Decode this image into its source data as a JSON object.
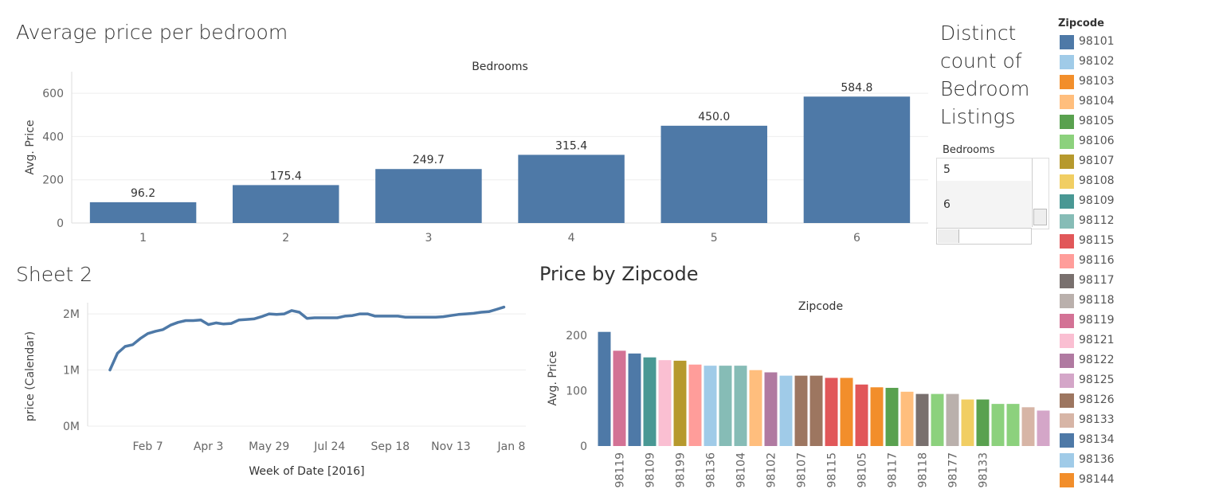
{
  "chart_data": [
    {
      "id": "avg_price_per_bedroom",
      "type": "bar",
      "title": "Average price per bedroom",
      "column_header": "Bedrooms",
      "ylabel": "Avg. Price",
      "categories": [
        "1",
        "2",
        "3",
        "4",
        "5",
        "6"
      ],
      "values": [
        96.2,
        175.4,
        249.7,
        315.4,
        450.0,
        584.8
      ],
      "value_labels": [
        "96.2",
        "175.4",
        "249.7",
        "315.4",
        "450.0",
        "584.8"
      ],
      "yticks": [
        "0",
        "200",
        "400",
        "600"
      ],
      "ylim": [
        0,
        700
      ],
      "color": "#4e79a7"
    },
    {
      "id": "sheet2",
      "type": "line",
      "title": "Sheet 2",
      "xlabel": "Week of Date [2016]",
      "ylabel": "price (Calendar)",
      "xticks": [
        "Feb 7",
        "Apr 3",
        "May 29",
        "Jul 24",
        "Sep 18",
        "Nov 13",
        "Jan 8"
      ],
      "yticks": [
        "0M",
        "1M",
        "2M"
      ],
      "ylim": [
        0,
        2200000
      ],
      "x_range": [
        "2016-01-03",
        "2017-01-08"
      ],
      "x": [
        "2016-01-03",
        "2016-01-10",
        "2016-01-17",
        "2016-01-24",
        "2016-01-31",
        "2016-02-07",
        "2016-02-14",
        "2016-02-21",
        "2016-02-28",
        "2016-03-06",
        "2016-03-13",
        "2016-03-20",
        "2016-03-27",
        "2016-04-03",
        "2016-04-10",
        "2016-04-17",
        "2016-04-24",
        "2016-05-01",
        "2016-05-08",
        "2016-05-15",
        "2016-05-22",
        "2016-05-29",
        "2016-06-05",
        "2016-06-12",
        "2016-06-19",
        "2016-06-26",
        "2016-07-03",
        "2016-07-10",
        "2016-07-17",
        "2016-07-24",
        "2016-07-31",
        "2016-08-07",
        "2016-08-14",
        "2016-08-21",
        "2016-08-28",
        "2016-09-04",
        "2016-09-11",
        "2016-09-18",
        "2016-09-25",
        "2016-10-02",
        "2016-10-09",
        "2016-10-16",
        "2016-10-23",
        "2016-10-30",
        "2016-11-06",
        "2016-11-13",
        "2016-11-20",
        "2016-11-27",
        "2016-12-04",
        "2016-12-11",
        "2016-12-18",
        "2016-12-25",
        "2017-01-01"
      ],
      "values": [
        1000000,
        1300000,
        1420000,
        1450000,
        1560000,
        1650000,
        1690000,
        1720000,
        1800000,
        1850000,
        1880000,
        1880000,
        1890000,
        1810000,
        1840000,
        1820000,
        1830000,
        1890000,
        1900000,
        1910000,
        1950000,
        2000000,
        1990000,
        2000000,
        2060000,
        2030000,
        1920000,
        1930000,
        1930000,
        1930000,
        1930000,
        1960000,
        1970000,
        2000000,
        2000000,
        1960000,
        1960000,
        1960000,
        1960000,
        1940000,
        1940000,
        1940000,
        1940000,
        1940000,
        1950000,
        1970000,
        1990000,
        2000000,
        2010000,
        2030000,
        2040000,
        2080000,
        2120000
      ],
      "color": "#4e79a7"
    },
    {
      "id": "price_by_zipcode",
      "type": "bar",
      "title": "Price by Zipcode",
      "column_header": "Zipcode",
      "ylabel": "Avg. Price",
      "yticks": [
        "0",
        "100",
        "200"
      ],
      "ylim": [
        0,
        230
      ],
      "categories": [
        "98101",
        "98119",
        "98134",
        "98109",
        "98121",
        "98199",
        "98108",
        "98116",
        "98136",
        "98112",
        "98104",
        "98122",
        "98102",
        "98103",
        "98126",
        "98107",
        "98144",
        "98115",
        "98144",
        "98105",
        "98106",
        "98117",
        "98106",
        "98118",
        "98108",
        "98177",
        "98105",
        "98106",
        "98133",
        "98125"
      ],
      "values": [
        206,
        172,
        167,
        160,
        155,
        154,
        147,
        145,
        145,
        145,
        137,
        133,
        127,
        127,
        127,
        123,
        123,
        111,
        106,
        105,
        98,
        94,
        94,
        94,
        84,
        84,
        76,
        76,
        70,
        64
      ],
      "colors": [
        "#4e79a7",
        "#d37295",
        "#4e79a7",
        "#499894",
        "#fabfd2",
        "#b6992d",
        "#ff9d9a",
        "#a0cbe8",
        "#86bcb6",
        "#86bcb6",
        "#ffbe7d",
        "#b07aa1",
        "#a0cbe8",
        "#9d7660",
        "#9d7660",
        "#e15759",
        "#f28e2b",
        "#e15759",
        "#f28e2b",
        "#59a14f",
        "#ffbe7d",
        "#79706e",
        "#8cd17d",
        "#bab0ac",
        "#f1ce63",
        "#59a14f",
        "#8cd17d",
        "#8cd17d",
        "#d7b5a6",
        "#d4a6c8"
      ],
      "tick_labels": [
        "98119",
        "98109",
        "98199",
        "98136",
        "98104",
        "98102",
        "98107",
        "98115",
        "98105",
        "98117",
        "98118",
        "98177",
        "98133"
      ]
    }
  ],
  "filter": {
    "title": "Distinct count of Bedroom Listings",
    "title_lines": [
      "Distinct",
      "count of",
      "Bedroom",
      "Listings"
    ],
    "header": "Bedrooms",
    "rows": [
      "5",
      "6"
    ]
  },
  "legend": {
    "title": "Zipcode",
    "items": [
      {
        "label": "98101",
        "color": "#4e79a7"
      },
      {
        "label": "98102",
        "color": "#a0cbe8"
      },
      {
        "label": "98103",
        "color": "#f28e2b"
      },
      {
        "label": "98104",
        "color": "#ffbe7d"
      },
      {
        "label": "98105",
        "color": "#59a14f"
      },
      {
        "label": "98106",
        "color": "#8cd17d"
      },
      {
        "label": "98107",
        "color": "#b6992d"
      },
      {
        "label": "98108",
        "color": "#f1ce63"
      },
      {
        "label": "98109",
        "color": "#499894"
      },
      {
        "label": "98112",
        "color": "#86bcb6"
      },
      {
        "label": "98115",
        "color": "#e15759"
      },
      {
        "label": "98116",
        "color": "#ff9d9a"
      },
      {
        "label": "98117",
        "color": "#79706e"
      },
      {
        "label": "98118",
        "color": "#bab0ac"
      },
      {
        "label": "98119",
        "color": "#d37295"
      },
      {
        "label": "98121",
        "color": "#fabfd2"
      },
      {
        "label": "98122",
        "color": "#b07aa1"
      },
      {
        "label": "98125",
        "color": "#d4a6c8"
      },
      {
        "label": "98126",
        "color": "#9d7660"
      },
      {
        "label": "98133",
        "color": "#d7b5a6"
      },
      {
        "label": "98134",
        "color": "#4e79a7"
      },
      {
        "label": "98136",
        "color": "#a0cbe8"
      },
      {
        "label": "98144",
        "color": "#f28e2b"
      }
    ]
  }
}
